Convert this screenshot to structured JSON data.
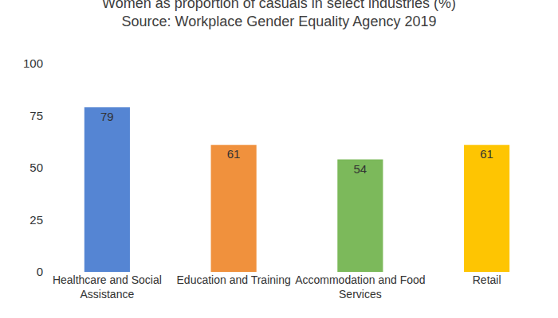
{
  "chart_data": {
    "type": "bar",
    "title": "Women as proportion of casuals in select industries (%)",
    "subtitle": "Source: Workplace Gender Equality Agency 2019",
    "categories": [
      "Healthcare and Social Assistance",
      "Education and Training",
      "Accommodation and Food Services",
      "Retail"
    ],
    "values": [
      79,
      61,
      54,
      61
    ],
    "colors": [
      "#5585d3",
      "#f0913d",
      "#7cb95b",
      "#fec502"
    ],
    "ylim": [
      0,
      100
    ],
    "yticks": [
      0,
      25,
      50,
      75,
      100
    ],
    "grid": false,
    "data_labels": true
  }
}
